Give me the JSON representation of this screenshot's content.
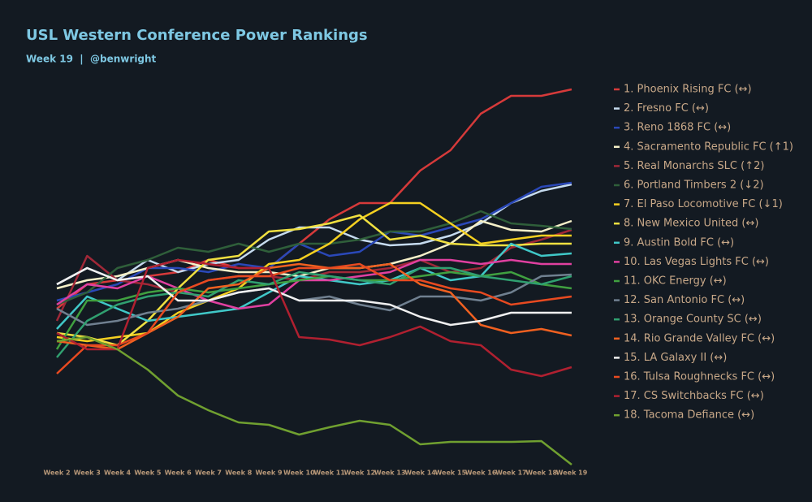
{
  "chart_data": {
    "type": "line",
    "title": "USL Western Conference Power Rankings",
    "subtitle": "Week 19  |  @benwright",
    "categories": [
      "Week 2",
      "Week 3",
      "Week 4",
      "Week 5",
      "Week 6",
      "Week 7",
      "Week 8",
      "Week 9",
      "Week 10",
      "Week 11",
      "Week 12",
      "Week 13",
      "Week 14",
      "Week 15",
      "Week 16",
      "Week 17",
      "Week 18",
      "Week 19"
    ],
    "ylim": [
      0,
      480
    ],
    "series": [
      {
        "name": "1. Phoenix Rising FC (↔)",
        "color": "#d63a3a",
        "values": [
          200,
          230,
          235,
          240,
          245,
          260,
          250,
          250,
          280,
          310,
          330,
          330,
          370,
          395,
          440,
          462,
          462,
          470
        ]
      },
      {
        "name": "2. Fresno FC (↔)",
        "color": "#c6dbef",
        "values": [
          230,
          250,
          235,
          260,
          245,
          255,
          260,
          285,
          300,
          300,
          285,
          278,
          280,
          290,
          305,
          330,
          345,
          353
        ]
      },
      {
        "name": "3. Reno 1868 FC (↔)",
        "color": "#2a48b8",
        "values": [
          210,
          220,
          230,
          250,
          250,
          245,
          255,
          250,
          280,
          265,
          270,
          295,
          290,
          300,
          310,
          330,
          350,
          355
        ]
      },
      {
        "name": "4. Sacramento Republic FC (↑1)",
        "color": "#f5f0c8",
        "values": [
          225,
          235,
          240,
          250,
          260,
          250,
          245,
          245,
          240,
          250,
          250,
          255,
          265,
          280,
          308,
          297,
          295,
          308
        ]
      },
      {
        "name": "5. Real Monarchs SLC (↑2)",
        "color": "#a02838",
        "values": [
          185,
          265,
          235,
          230,
          220,
          235,
          240,
          240,
          235,
          245,
          245,
          250,
          260,
          245,
          250,
          275,
          285,
          297
        ]
      },
      {
        "name": "6. Portland Timbers 2 (↓2)",
        "color": "#2f5f3a",
        "values": [
          205,
          220,
          250,
          260,
          275,
          270,
          280,
          270,
          280,
          280,
          285,
          295,
          295,
          305,
          320,
          305,
          302,
          298
        ]
      },
      {
        "name": "7. El Paso Locomotive FC (↓1)",
        "color": "#f5d020",
        "values": [
          165,
          160,
          165,
          170,
          195,
          210,
          225,
          255,
          260,
          280,
          310,
          330,
          330,
          305,
          280,
          285,
          290,
          290
        ]
      },
      {
        "name": "8. New Mexico United (↔)",
        "color": "#f0e040",
        "values": [
          170,
          165,
          155,
          185,
          225,
          260,
          265,
          295,
          298,
          305,
          315,
          285,
          290,
          280,
          278,
          278,
          280,
          280
        ]
      },
      {
        "name": "9. Austin Bold FC (↔)",
        "color": "#40c8c8",
        "values": [
          175,
          215,
          200,
          185,
          190,
          195,
          200,
          220,
          240,
          235,
          230,
          235,
          250,
          235,
          240,
          280,
          265,
          268
        ]
      },
      {
        "name": "10. Las Vegas Lights FC (↔)",
        "color": "#e040a0",
        "values": [
          205,
          230,
          225,
          240,
          225,
          210,
          200,
          205,
          235,
          235,
          240,
          245,
          260,
          260,
          255,
          260,
          255,
          255
        ]
      },
      {
        "name": "11. OKC Energy (↔)",
        "color": "#40a040",
        "values": [
          150,
          210,
          210,
          220,
          225,
          220,
          225,
          230,
          235,
          240,
          235,
          235,
          240,
          245,
          240,
          245,
          230,
          225
        ]
      },
      {
        "name": "12. San Antonio FC (↔)",
        "color": "#708090",
        "values": [
          200,
          180,
          185,
          195,
          200,
          210,
          220,
          225,
          210,
          215,
          205,
          198,
          215,
          215,
          210,
          220,
          240,
          242
        ]
      },
      {
        "name": "13. Orange County SC (↔)",
        "color": "#30a070",
        "values": [
          140,
          185,
          205,
          215,
          220,
          215,
          235,
          230,
          245,
          240,
          235,
          230,
          250,
          250,
          240,
          235,
          230,
          240
        ]
      },
      {
        "name": "14. Rio Grande Valley FC (↔)",
        "color": "#f06020",
        "values": [
          160,
          155,
          150,
          170,
          190,
          225,
          230,
          250,
          255,
          250,
          250,
          255,
          230,
          220,
          180,
          170,
          175,
          167
        ]
      },
      {
        "name": "15. LA Galaxy II (↔)",
        "color": "#f0f0f0",
        "values": [
          230,
          250,
          235,
          240,
          210,
          210,
          220,
          225,
          210,
          210,
          210,
          205,
          190,
          180,
          185,
          195,
          195,
          195
        ]
      },
      {
        "name": "16. Tulsa Roughnecks FC (↔)",
        "color": "#e84a20",
        "values": [
          120,
          155,
          155,
          170,
          220,
          235,
          240,
          240,
          250,
          250,
          255,
          235,
          235,
          225,
          220,
          205,
          210,
          215
        ]
      },
      {
        "name": "17. CS Switchbacks FC (↔)",
        "color": "#b02030",
        "values": [
          170,
          150,
          150,
          250,
          260,
          255,
          250,
          250,
          165,
          162,
          155,
          165,
          178,
          160,
          155,
          125,
          117,
          128
        ]
      },
      {
        "name": "18. Tacoma Defiance (↔)",
        "color": "#70a030",
        "values": [
          160,
          165,
          150,
          125,
          93,
          75,
          60,
          57,
          45,
          54,
          62,
          57,
          33,
          36,
          36,
          36,
          37,
          8
        ]
      }
    ]
  }
}
